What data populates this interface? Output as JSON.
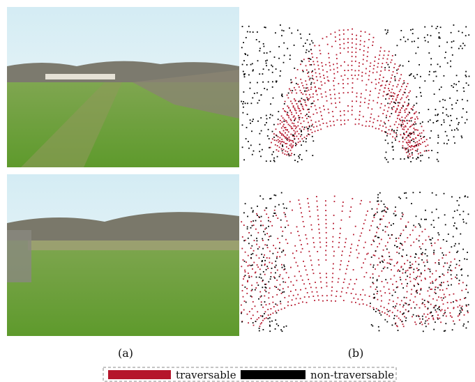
{
  "panels": [
    {
      "label": "(a)"
    },
    {
      "label": "(b)"
    }
  ],
  "legend": [
    {
      "label": "traversable",
      "color": "#b5152b"
    },
    {
      "label": "non-traversable",
      "color": "#000000"
    }
  ]
}
